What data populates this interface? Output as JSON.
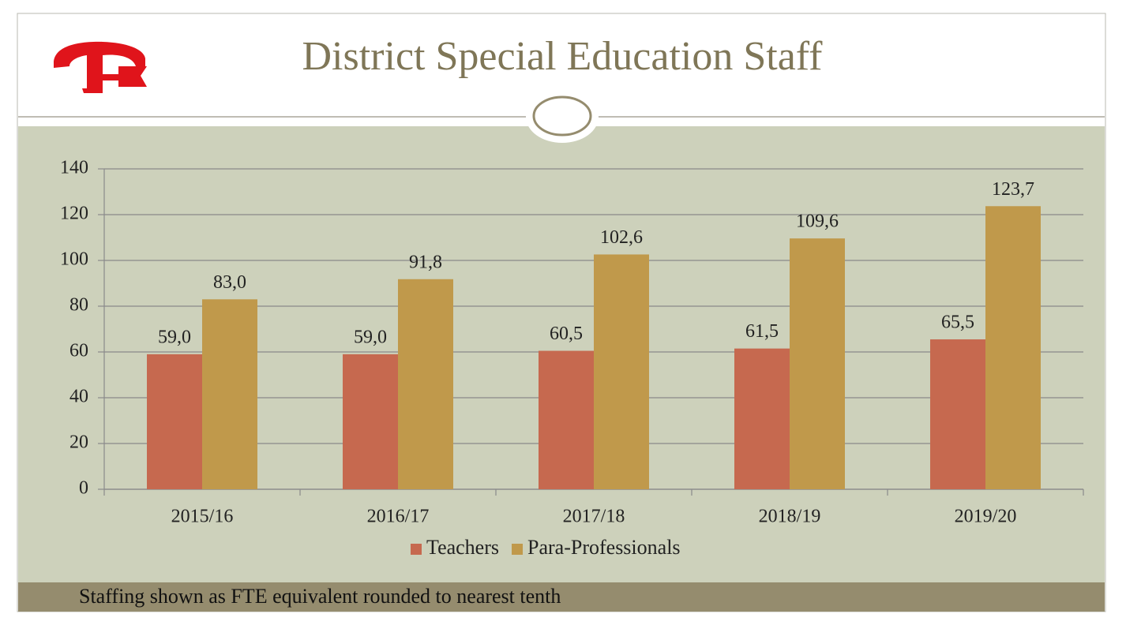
{
  "header": {
    "title": "District Special Education Staff"
  },
  "chart_data": {
    "type": "bar",
    "categories": [
      "2015/16",
      "2016/17",
      "2017/18",
      "2018/19",
      "2019/20"
    ],
    "series": [
      {
        "name": "Teachers",
        "color": "#c6694f",
        "values": [
          59.0,
          59.0,
          60.5,
          61.5,
          65.5
        ],
        "value_labels": [
          "59,0",
          "59,0",
          "60,5",
          "61,5",
          "65,5"
        ]
      },
      {
        "name": "Para-Professionals",
        "color": "#c0994b",
        "values": [
          83.0,
          91.8,
          102.6,
          109.6,
          123.7
        ],
        "value_labels": [
          "83,0",
          "91,8",
          "102,6",
          "109,6",
          "123,7"
        ]
      }
    ],
    "ylim": [
      0,
      140
    ],
    "yticks": [
      0,
      20,
      40,
      60,
      80,
      100,
      120,
      140
    ],
    "grid": true,
    "legend": "bottom"
  },
  "footer": {
    "note": "Staffing shown as FTE equivalent rounded to nearest tenth"
  }
}
